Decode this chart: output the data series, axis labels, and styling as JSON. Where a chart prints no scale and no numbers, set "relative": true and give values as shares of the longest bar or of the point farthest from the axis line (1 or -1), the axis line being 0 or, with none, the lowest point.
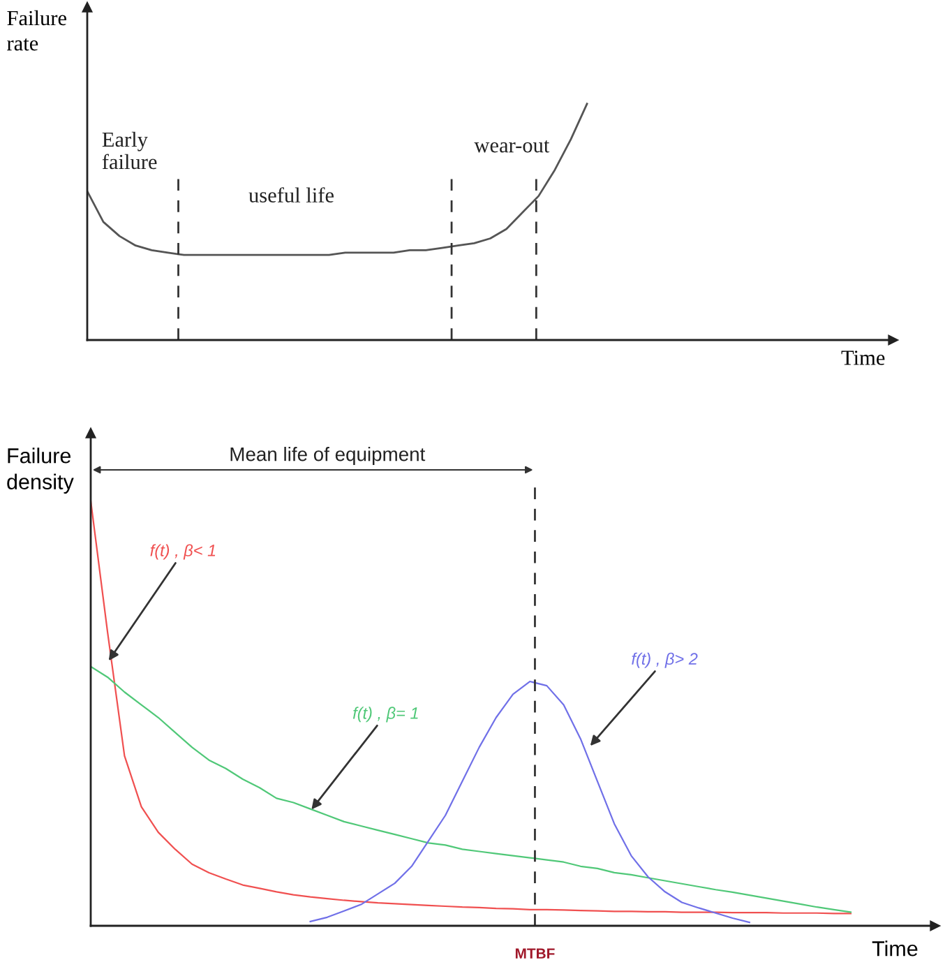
{
  "chart_data": [
    {
      "type": "line",
      "relative": true,
      "xlabel": "Time",
      "ylabel": "Failure\nrate",
      "marker": "none",
      "categories": [
        null,
        null,
        null,
        null,
        null,
        null,
        null,
        null,
        null,
        null,
        null,
        null,
        null,
        null,
        null,
        null,
        null,
        null,
        null,
        null,
        null,
        null,
        null,
        null,
        null,
        null,
        null,
        null,
        null,
        null,
        null,
        null,
        null,
        null,
        null,
        null,
        null,
        null,
        null,
        null,
        null,
        null,
        null,
        null,
        null,
        null,
        null,
        null,
        null,
        null,
        null
      ],
      "annotations": [
        "Early\nfailure",
        "useful life",
        "wear-out"
      ],
      "series": [
        {
          "color": "#555555",
          "values": [
            0.63,
            0.5,
            0.44,
            0.4,
            0.38,
            0.37,
            0.36,
            0.36,
            0.36,
            0.36,
            0.36,
            0.36,
            0.36,
            0.36,
            0.36,
            0.36,
            0.37,
            0.37,
            0.37,
            0.37,
            0.38,
            0.38,
            0.39,
            0.4,
            0.41,
            0.43,
            0.47,
            0.54,
            0.61,
            0.72,
            0.85,
            1.0,
            null,
            null,
            null,
            null,
            null,
            null,
            null,
            null,
            null,
            null,
            null,
            null,
            null,
            null,
            null,
            null,
            null,
            null,
            null
          ]
        }
      ]
    },
    {
      "type": "line",
      "relative": true,
      "xlabel": "Time",
      "ylabel": "Failure\ndensity",
      "marker": "none",
      "categories": [
        null,
        null,
        null,
        null,
        null,
        null,
        null,
        null,
        null,
        null,
        null,
        null,
        null,
        null,
        null,
        null,
        null,
        null,
        null,
        null,
        null,
        null,
        null,
        null,
        null,
        null,
        null,
        null,
        null,
        null,
        null,
        null,
        null,
        null,
        null,
        null,
        null,
        null,
        null,
        null,
        null,
        null,
        null,
        null,
        null,
        null,
        null,
        null,
        null,
        null,
        null
      ],
      "annotations": [
        "Mean life of equipment",
        "MTBF"
      ],
      "series": [
        {
          "name": "f(t) , β< 1",
          "color": "#f05050",
          "values": [
            1.0,
            0.69,
            0.4,
            0.28,
            0.22,
            0.18,
            0.145,
            0.125,
            0.11,
            0.096,
            0.088,
            0.08,
            0.073,
            0.068,
            0.064,
            0.06,
            0.057,
            0.054,
            0.052,
            0.05,
            0.048,
            0.046,
            0.044,
            0.043,
            0.041,
            0.04,
            0.038,
            0.038,
            0.037,
            0.036,
            0.035,
            0.034,
            0.034,
            0.033,
            0.033,
            0.032,
            0.032,
            0.032,
            0.031,
            0.031,
            0.031,
            0.03,
            0.03,
            0.03,
            0.029,
            0.029,
            null,
            null,
            null,
            null,
            null
          ]
        },
        {
          "name": "f(t) , β= 1",
          "color": "#50c878",
          "values": [
            0.61,
            0.585,
            0.55,
            0.52,
            0.49,
            0.455,
            0.42,
            0.39,
            0.37,
            0.345,
            0.325,
            0.3,
            0.29,
            0.275,
            0.26,
            0.245,
            0.235,
            0.225,
            0.215,
            0.205,
            0.195,
            0.19,
            0.18,
            0.175,
            0.17,
            0.165,
            0.16,
            0.155,
            0.15,
            0.14,
            0.135,
            0.125,
            0.12,
            0.113,
            0.106,
            0.099,
            0.092,
            0.085,
            0.079,
            0.072,
            0.065,
            0.058,
            0.051,
            0.044,
            0.038,
            0.032,
            null,
            null,
            null,
            null,
            null
          ]
        },
        {
          "name": "f(t) , β> 2",
          "color": "#7070e8",
          "values": [
            null,
            null,
            null,
            null,
            null,
            null,
            null,
            null,
            null,
            null,
            null,
            null,
            null,
            0.01,
            0.02,
            0.035,
            0.05,
            0.075,
            0.1,
            0.14,
            0.2,
            0.26,
            0.34,
            0.42,
            0.49,
            0.545,
            0.575,
            0.565,
            0.52,
            0.44,
            0.34,
            0.24,
            0.165,
            0.115,
            0.08,
            0.055,
            0.042,
            0.03,
            0.018,
            0.008,
            null,
            null,
            null,
            null,
            null,
            null,
            null,
            null,
            null,
            null,
            null
          ]
        }
      ]
    }
  ]
}
